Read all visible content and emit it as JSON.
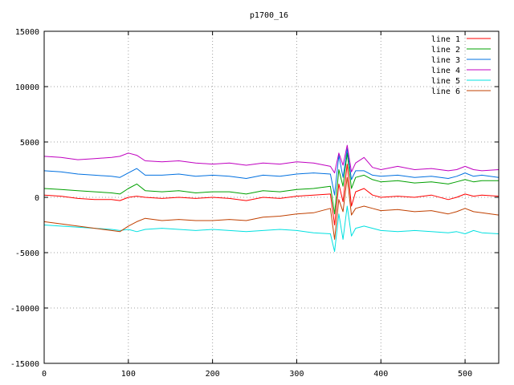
{
  "chart_data": {
    "type": "line",
    "title": "p1700_16",
    "xlabel": "",
    "ylabel": "",
    "xlim": [
      0,
      540
    ],
    "ylim": [
      -15000,
      15000
    ],
    "x_ticks": [
      0,
      100,
      200,
      300,
      400,
      500
    ],
    "y_ticks": [
      -15000,
      -10000,
      -5000,
      0,
      5000,
      10000,
      15000
    ],
    "x_tick_labels": [
      "0",
      "100",
      "200",
      "300",
      "400",
      "500"
    ],
    "y_tick_labels": [
      "-15000",
      "-10000",
      "-5000",
      "0",
      "5000",
      "10000",
      "15000"
    ],
    "grid": true,
    "legend_position": "top-right",
    "x": [
      0,
      20,
      40,
      60,
      80,
      90,
      100,
      110,
      120,
      140,
      160,
      180,
      200,
      220,
      240,
      260,
      280,
      300,
      320,
      340,
      345,
      350,
      355,
      360,
      365,
      370,
      380,
      390,
      400,
      420,
      440,
      460,
      480,
      490,
      500,
      510,
      520,
      540
    ],
    "series": [
      {
        "name": "line 1",
        "color": "#ff0000",
        "values": [
          200,
          100,
          -100,
          -200,
          -200,
          -300,
          0,
          100,
          0,
          -100,
          0,
          -100,
          0,
          -100,
          -300,
          0,
          -100,
          100,
          200,
          300,
          -2500,
          1200,
          -400,
          3000,
          -800,
          500,
          800,
          200,
          0,
          100,
          0,
          200,
          -200,
          0,
          300,
          100,
          200,
          100
        ]
      },
      {
        "name": "line 2",
        "color": "#00a000",
        "values": [
          800,
          700,
          600,
          500,
          400,
          300,
          800,
          1200,
          600,
          500,
          600,
          400,
          500,
          500,
          300,
          600,
          500,
          700,
          800,
          1000,
          -1500,
          2500,
          1000,
          4000,
          800,
          1800,
          2000,
          1600,
          1400,
          1500,
          1300,
          1400,
          1200,
          1400,
          1600,
          1400,
          1500,
          1500
        ]
      },
      {
        "name": "line 3",
        "color": "#0070e0",
        "values": [
          2400,
          2300,
          2100,
          2000,
          1900,
          1800,
          2200,
          2600,
          2000,
          2000,
          2100,
          1900,
          2000,
          1900,
          1700,
          2000,
          1900,
          2100,
          2200,
          2100,
          200,
          3800,
          1800,
          4400,
          1600,
          2400,
          2400,
          2000,
          1900,
          2000,
          1800,
          1900,
          1700,
          1900,
          2200,
          1900,
          2000,
          1800
        ]
      },
      {
        "name": "line 4",
        "color": "#c000c0",
        "values": [
          3700,
          3600,
          3400,
          3500,
          3600,
          3700,
          4000,
          3800,
          3300,
          3200,
          3300,
          3100,
          3000,
          3100,
          2900,
          3100,
          3000,
          3200,
          3100,
          2800,
          2200,
          4000,
          2900,
          4700,
          2300,
          3100,
          3600,
          2700,
          2500,
          2800,
          2500,
          2600,
          2400,
          2500,
          2800,
          2500,
          2400,
          2500
        ]
      },
      {
        "name": "line 5",
        "color": "#00e0e0",
        "values": [
          -2500,
          -2600,
          -2700,
          -2800,
          -2900,
          -3000,
          -2900,
          -3100,
          -2900,
          -2800,
          -2900,
          -3000,
          -2900,
          -3000,
          -3100,
          -3000,
          -2900,
          -3000,
          -3200,
          -3300,
          -4900,
          -1500,
          -3800,
          -800,
          -3500,
          -2800,
          -2600,
          -2800,
          -3000,
          -3100,
          -3000,
          -3100,
          -3200,
          -3100,
          -3300,
          -3000,
          -3200,
          -3300
        ]
      },
      {
        "name": "line 6",
        "color": "#c04000",
        "values": [
          -2200,
          -2400,
          -2600,
          -2800,
          -3000,
          -3100,
          -2600,
          -2200,
          -1900,
          -2100,
          -2000,
          -2100,
          -2100,
          -2000,
          -2100,
          -1800,
          -1700,
          -1500,
          -1400,
          -1000,
          -3800,
          -200,
          -1300,
          1800,
          -1600,
          -1000,
          -800,
          -1000,
          -1200,
          -1100,
          -1300,
          -1200,
          -1500,
          -1300,
          -1000,
          -1300,
          -1400,
          -1600
        ]
      }
    ]
  }
}
